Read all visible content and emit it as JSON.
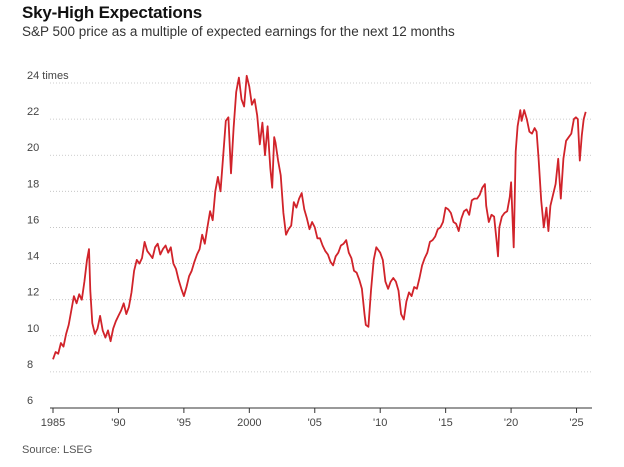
{
  "header": {
    "title": "Sky-High Expectations",
    "subtitle": "S&P 500 price as a multiple of expected earnings for the next 12 months"
  },
  "footer": {
    "source": "Source: LSEG"
  },
  "colors": {
    "line": "#d1232a",
    "grid": "#bdbdbd",
    "axis": "#333333"
  },
  "chart_data": {
    "type": "line",
    "title": "Sky-High Expectations",
    "subtitle": "S&P 500 price as a multiple of expected earnings for the next 12 months",
    "ylabel": "",
    "xlabel": "",
    "ylim": [
      6,
      24
    ],
    "xlim": [
      1985,
      2025.8
    ],
    "yticks": [
      {
        "value": 24,
        "label": "24 times"
      },
      {
        "value": 22,
        "label": "22"
      },
      {
        "value": 20,
        "label": "20"
      },
      {
        "value": 18,
        "label": "18"
      },
      {
        "value": 16,
        "label": "16"
      },
      {
        "value": 14,
        "label": "14"
      },
      {
        "value": 12,
        "label": "12"
      },
      {
        "value": 10,
        "label": "10"
      },
      {
        "value": 8,
        "label": "8"
      },
      {
        "value": 6,
        "label": "6"
      }
    ],
    "xticks": [
      {
        "value": 1985,
        "label": "1985"
      },
      {
        "value": 1990,
        "label": "'90"
      },
      {
        "value": 1995,
        "label": "'95"
      },
      {
        "value": 2000,
        "label": "2000"
      },
      {
        "value": 2005,
        "label": "'05"
      },
      {
        "value": 2010,
        "label": "'10"
      },
      {
        "value": 2015,
        "label": "'15"
      },
      {
        "value": 2020,
        "label": "'20"
      },
      {
        "value": 2025,
        "label": "'25"
      }
    ],
    "grid": true,
    "series": [
      {
        "points": [
          [
            1985.0,
            8.7
          ],
          [
            1985.2,
            9.1
          ],
          [
            1985.4,
            9.0
          ],
          [
            1985.6,
            9.6
          ],
          [
            1985.8,
            9.4
          ],
          [
            1986.0,
            10.1
          ],
          [
            1986.2,
            10.6
          ],
          [
            1986.4,
            11.4
          ],
          [
            1986.6,
            12.2
          ],
          [
            1986.8,
            11.8
          ],
          [
            1987.0,
            12.3
          ],
          [
            1987.2,
            12.0
          ],
          [
            1987.4,
            13.0
          ],
          [
            1987.6,
            14.2
          ],
          [
            1987.75,
            14.8
          ],
          [
            1987.85,
            12.5
          ],
          [
            1988.0,
            10.7
          ],
          [
            1988.2,
            10.1
          ],
          [
            1988.4,
            10.4
          ],
          [
            1988.6,
            11.1
          ],
          [
            1988.8,
            10.3
          ],
          [
            1989.0,
            9.9
          ],
          [
            1989.2,
            10.3
          ],
          [
            1989.4,
            9.7
          ],
          [
            1989.6,
            10.4
          ],
          [
            1989.8,
            10.8
          ],
          [
            1990.0,
            11.1
          ],
          [
            1990.2,
            11.4
          ],
          [
            1990.4,
            11.8
          ],
          [
            1990.6,
            11.2
          ],
          [
            1990.8,
            11.6
          ],
          [
            1991.0,
            12.4
          ],
          [
            1991.2,
            13.6
          ],
          [
            1991.4,
            14.2
          ],
          [
            1991.6,
            14.0
          ],
          [
            1991.8,
            14.3
          ],
          [
            1992.0,
            15.2
          ],
          [
            1992.2,
            14.7
          ],
          [
            1992.4,
            14.5
          ],
          [
            1992.6,
            14.3
          ],
          [
            1992.8,
            14.9
          ],
          [
            1993.0,
            15.1
          ],
          [
            1993.2,
            14.5
          ],
          [
            1993.4,
            14.8
          ],
          [
            1993.6,
            15.0
          ],
          [
            1993.8,
            14.6
          ],
          [
            1994.0,
            14.9
          ],
          [
            1994.2,
            14.0
          ],
          [
            1994.4,
            13.7
          ],
          [
            1994.6,
            13.1
          ],
          [
            1994.8,
            12.6
          ],
          [
            1995.0,
            12.2
          ],
          [
            1995.2,
            12.7
          ],
          [
            1995.4,
            13.3
          ],
          [
            1995.6,
            13.6
          ],
          [
            1995.8,
            14.1
          ],
          [
            1996.0,
            14.5
          ],
          [
            1996.2,
            14.8
          ],
          [
            1996.4,
            15.6
          ],
          [
            1996.6,
            15.1
          ],
          [
            1996.8,
            16.0
          ],
          [
            1997.0,
            16.9
          ],
          [
            1997.2,
            16.4
          ],
          [
            1997.4,
            18.0
          ],
          [
            1997.6,
            18.8
          ],
          [
            1997.8,
            18.0
          ],
          [
            1998.0,
            19.9
          ],
          [
            1998.2,
            21.9
          ],
          [
            1998.4,
            22.1
          ],
          [
            1998.6,
            19.0
          ],
          [
            1998.8,
            21.5
          ],
          [
            1999.0,
            23.5
          ],
          [
            1999.2,
            24.3
          ],
          [
            1999.4,
            23.1
          ],
          [
            1999.6,
            22.7
          ],
          [
            1999.8,
            24.4
          ],
          [
            2000.0,
            23.8
          ],
          [
            2000.2,
            22.8
          ],
          [
            2000.4,
            23.1
          ],
          [
            2000.6,
            22.2
          ],
          [
            2000.8,
            20.6
          ],
          [
            2001.0,
            21.8
          ],
          [
            2001.2,
            20.0
          ],
          [
            2001.4,
            21.6
          ],
          [
            2001.6,
            19.3
          ],
          [
            2001.75,
            18.2
          ],
          [
            2001.9,
            21.0
          ],
          [
            2002.0,
            20.7
          ],
          [
            2002.2,
            19.7
          ],
          [
            2002.4,
            18.9
          ],
          [
            2002.6,
            16.8
          ],
          [
            2002.8,
            15.6
          ],
          [
            2003.0,
            15.9
          ],
          [
            2003.2,
            16.1
          ],
          [
            2003.4,
            17.4
          ],
          [
            2003.6,
            17.1
          ],
          [
            2003.8,
            17.6
          ],
          [
            2004.0,
            17.9
          ],
          [
            2004.2,
            17.0
          ],
          [
            2004.4,
            16.5
          ],
          [
            2004.6,
            15.9
          ],
          [
            2004.8,
            16.3
          ],
          [
            2005.0,
            16.0
          ],
          [
            2005.2,
            15.4
          ],
          [
            2005.4,
            15.4
          ],
          [
            2005.6,
            15.0
          ],
          [
            2005.8,
            14.7
          ],
          [
            2006.0,
            14.5
          ],
          [
            2006.2,
            14.1
          ],
          [
            2006.4,
            13.9
          ],
          [
            2006.6,
            14.4
          ],
          [
            2006.8,
            14.6
          ],
          [
            2007.0,
            15.0
          ],
          [
            2007.2,
            15.1
          ],
          [
            2007.4,
            15.3
          ],
          [
            2007.6,
            14.6
          ],
          [
            2007.8,
            14.3
          ],
          [
            2008.0,
            13.6
          ],
          [
            2008.2,
            13.5
          ],
          [
            2008.4,
            13.1
          ],
          [
            2008.6,
            12.6
          ],
          [
            2008.8,
            11.2
          ],
          [
            2008.9,
            10.6
          ],
          [
            2009.1,
            10.5
          ],
          [
            2009.3,
            12.5
          ],
          [
            2009.5,
            14.2
          ],
          [
            2009.7,
            14.9
          ],
          [
            2009.9,
            14.7
          ],
          [
            2010.0,
            14.6
          ],
          [
            2010.2,
            14.2
          ],
          [
            2010.4,
            13.0
          ],
          [
            2010.6,
            12.6
          ],
          [
            2010.8,
            13.0
          ],
          [
            2011.0,
            13.2
          ],
          [
            2011.2,
            13.0
          ],
          [
            2011.4,
            12.5
          ],
          [
            2011.6,
            11.2
          ],
          [
            2011.8,
            10.9
          ],
          [
            2012.0,
            11.9
          ],
          [
            2012.2,
            12.4
          ],
          [
            2012.4,
            12.2
          ],
          [
            2012.6,
            12.7
          ],
          [
            2012.8,
            12.6
          ],
          [
            2013.0,
            13.2
          ],
          [
            2013.2,
            13.9
          ],
          [
            2013.4,
            14.3
          ],
          [
            2013.6,
            14.6
          ],
          [
            2013.8,
            15.2
          ],
          [
            2014.0,
            15.3
          ],
          [
            2014.2,
            15.5
          ],
          [
            2014.4,
            15.9
          ],
          [
            2014.6,
            16.0
          ],
          [
            2014.8,
            16.3
          ],
          [
            2015.0,
            17.1
          ],
          [
            2015.2,
            17.0
          ],
          [
            2015.4,
            16.8
          ],
          [
            2015.6,
            16.3
          ],
          [
            2015.8,
            16.2
          ],
          [
            2016.0,
            15.8
          ],
          [
            2016.2,
            16.5
          ],
          [
            2016.4,
            16.9
          ],
          [
            2016.6,
            17.0
          ],
          [
            2016.8,
            16.7
          ],
          [
            2017.0,
            17.5
          ],
          [
            2017.2,
            17.6
          ],
          [
            2017.4,
            17.6
          ],
          [
            2017.6,
            17.8
          ],
          [
            2017.8,
            18.2
          ],
          [
            2018.0,
            18.4
          ],
          [
            2018.1,
            17.2
          ],
          [
            2018.3,
            16.3
          ],
          [
            2018.5,
            16.7
          ],
          [
            2018.7,
            16.6
          ],
          [
            2018.9,
            15.2
          ],
          [
            2019.0,
            14.4
          ],
          [
            2019.1,
            16.0
          ],
          [
            2019.3,
            16.6
          ],
          [
            2019.5,
            16.8
          ],
          [
            2019.7,
            16.9
          ],
          [
            2019.9,
            17.7
          ],
          [
            2020.0,
            18.5
          ],
          [
            2020.2,
            14.9
          ],
          [
            2020.35,
            20.2
          ],
          [
            2020.5,
            21.6
          ],
          [
            2020.7,
            22.5
          ],
          [
            2020.8,
            21.9
          ],
          [
            2021.0,
            22.5
          ],
          [
            2021.2,
            22.0
          ],
          [
            2021.4,
            21.3
          ],
          [
            2021.6,
            21.2
          ],
          [
            2021.8,
            21.5
          ],
          [
            2021.95,
            21.3
          ],
          [
            2022.1,
            19.8
          ],
          [
            2022.3,
            17.5
          ],
          [
            2022.5,
            16.0
          ],
          [
            2022.7,
            17.1
          ],
          [
            2022.85,
            15.8
          ],
          [
            2023.0,
            17.2
          ],
          [
            2023.2,
            17.8
          ],
          [
            2023.4,
            18.4
          ],
          [
            2023.6,
            19.8
          ],
          [
            2023.8,
            17.6
          ],
          [
            2024.0,
            19.8
          ],
          [
            2024.2,
            20.8
          ],
          [
            2024.4,
            21.0
          ],
          [
            2024.6,
            21.2
          ],
          [
            2024.8,
            22.0
          ],
          [
            2024.95,
            22.1
          ],
          [
            2025.1,
            22.0
          ],
          [
            2025.25,
            19.7
          ],
          [
            2025.4,
            21.1
          ],
          [
            2025.55,
            22.0
          ],
          [
            2025.7,
            22.4
          ]
        ]
      }
    ]
  }
}
